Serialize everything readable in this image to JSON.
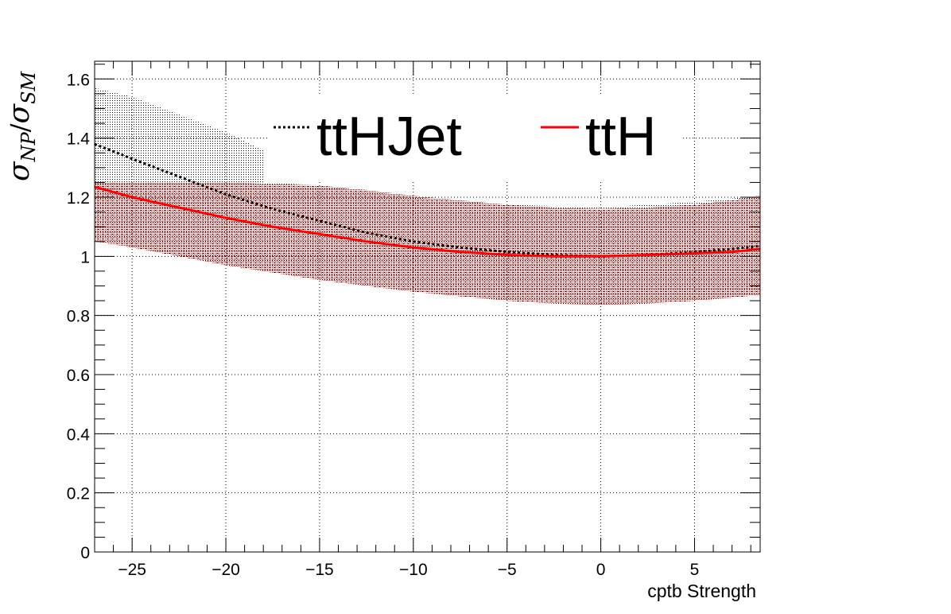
{
  "chart_data": {
    "type": "line",
    "xlabel": "cptb Strength",
    "ylabel": {
      "main": "σ",
      "sub1": "NP",
      "slash": "/",
      "main2": "σ",
      "sub2": "SM"
    },
    "xlim": [
      -27,
      8.5
    ],
    "ylim": [
      0,
      1.66
    ],
    "xticks": [
      -25,
      -20,
      -15,
      -10,
      -5,
      0,
      5
    ],
    "xtick_labels": [
      "−25",
      "−20",
      "−15",
      "−10",
      "−5",
      "0",
      "5"
    ],
    "yticks": [
      0,
      0.2,
      0.4,
      0.6,
      0.8,
      1,
      1.2,
      1.4,
      1.6
    ],
    "ytick_labels": [
      "0",
      "0.2",
      "0.4",
      "0.6",
      "0.8",
      "1",
      "1.2",
      "1.4",
      "1.6"
    ],
    "grid": true,
    "legend_position": "top-center",
    "series": [
      {
        "name": "ttHJet",
        "color": "#000000",
        "style": "dotted",
        "x": [
          -27,
          -25,
          -22.5,
          -20,
          -17.5,
          -15,
          -12.5,
          -10,
          -7.5,
          -5,
          -2.5,
          0,
          2.5,
          5,
          7,
          8.5
        ],
        "y": [
          1.38,
          1.33,
          1.27,
          1.21,
          1.16,
          1.12,
          1.08,
          1.05,
          1.03,
          1.015,
          1.005,
          1.0,
          1.005,
          1.015,
          1.025,
          1.035
        ],
        "band": {
          "color": "#1a1a1a",
          "x": [
            -27,
            -25,
            -22.5,
            -20,
            -18,
            -18,
            -15,
            -12.5,
            -10,
            -7.5,
            -5,
            -2.5,
            0,
            2.5,
            5,
            7,
            8.5
          ],
          "upper": [
            1.57,
            1.54,
            1.48,
            1.42,
            1.36,
            1.25,
            1.24,
            1.22,
            1.2,
            1.185,
            1.175,
            1.17,
            1.165,
            1.175,
            1.185,
            1.195,
            1.205
          ],
          "lower": [
            1.06,
            1.03,
            1.0,
            0.97,
            0.95,
            0.95,
            0.92,
            0.9,
            0.88,
            0.865,
            0.85,
            0.84,
            0.835,
            0.84,
            0.85,
            0.86,
            0.87
          ]
        }
      },
      {
        "name": "ttH",
        "color": "#ff0000",
        "style": "solid",
        "x": [
          -27,
          -25,
          -22.5,
          -20,
          -17.5,
          -15,
          -12.5,
          -10,
          -7.5,
          -5,
          -2.5,
          0,
          2.5,
          5,
          7,
          8.5
        ],
        "y": [
          1.235,
          1.2,
          1.165,
          1.13,
          1.1,
          1.075,
          1.05,
          1.03,
          1.015,
          1.005,
          1.0,
          1.0,
          1.005,
          1.01,
          1.015,
          1.025
        ],
        "band": {
          "color": "#c00000",
          "x": [
            -27,
            -25,
            -22.5,
            -20,
            -17.5,
            -15,
            -12.5,
            -10,
            -7.5,
            -5,
            -2.5,
            0,
            2.5,
            5,
            7,
            8.5
          ],
          "upper": [
            1.25,
            1.25,
            1.25,
            1.25,
            1.245,
            1.24,
            1.225,
            1.205,
            1.19,
            1.175,
            1.165,
            1.16,
            1.165,
            1.175,
            1.19,
            1.205
          ],
          "lower": [
            1.05,
            1.03,
            1.0,
            0.97,
            0.945,
            0.92,
            0.9,
            0.88,
            0.865,
            0.85,
            0.84,
            0.835,
            0.84,
            0.85,
            0.86,
            0.87
          ]
        }
      }
    ]
  }
}
